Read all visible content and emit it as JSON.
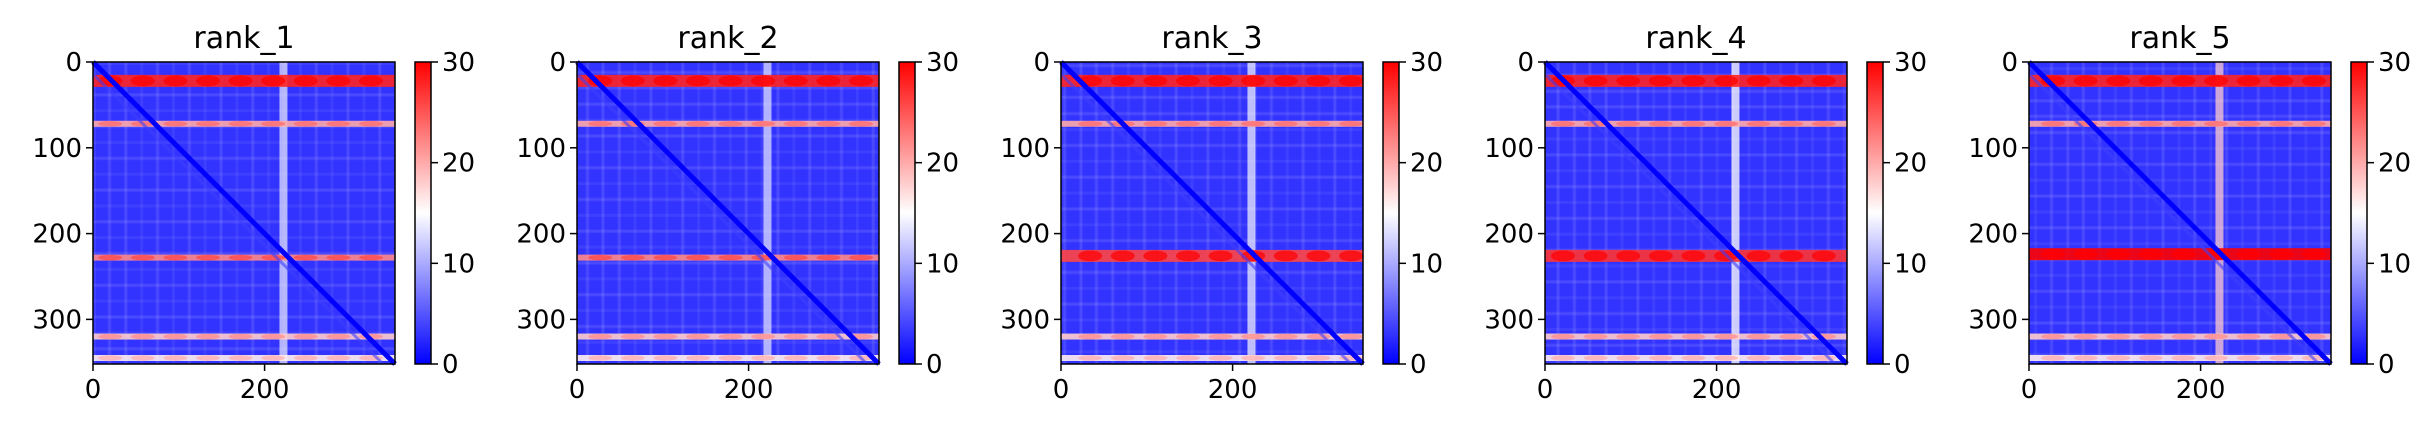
{
  "chart_data": [
    {
      "type": "heatmap",
      "title": "rank_1",
      "xlim": [
        0,
        352
      ],
      "ylim": [
        352,
        0
      ],
      "xticks": [
        0,
        200
      ],
      "yticks": [
        0,
        100,
        200,
        300
      ],
      "colorbar": {
        "min": 0,
        "max": 30,
        "ticks": [
          0,
          10,
          20,
          30
        ],
        "colormap": "bwr"
      },
      "features": {
        "bands": [
          {
            "pos": 22,
            "val": 28
          },
          {
            "pos": 72,
            "val": 20
          },
          {
            "pos": 228,
            "val": 22
          },
          {
            "pos": 320,
            "val": 18
          },
          {
            "pos": 345,
            "val": 16
          }
        ],
        "vline": {
          "pos": 222,
          "val": 13
        },
        "diagonal_val": 0
      }
    },
    {
      "type": "heatmap",
      "title": "rank_2",
      "xlim": [
        0,
        352
      ],
      "ylim": [
        352,
        0
      ],
      "xticks": [
        0,
        200
      ],
      "yticks": [
        0,
        100,
        200,
        300
      ],
      "colorbar": {
        "min": 0,
        "max": 30,
        "ticks": [
          0,
          10,
          20,
          30
        ],
        "colormap": "bwr"
      },
      "features": {
        "bands": [
          {
            "pos": 22,
            "val": 28
          },
          {
            "pos": 72,
            "val": 20
          },
          {
            "pos": 228,
            "val": 22
          },
          {
            "pos": 320,
            "val": 18
          },
          {
            "pos": 345,
            "val": 16
          }
        ],
        "vline": {
          "pos": 222,
          "val": 13
        },
        "diagonal_val": 0
      }
    },
    {
      "type": "heatmap",
      "title": "rank_3",
      "xlim": [
        0,
        352
      ],
      "ylim": [
        352,
        0
      ],
      "xticks": [
        0,
        200
      ],
      "yticks": [
        0,
        100,
        200,
        300
      ],
      "colorbar": {
        "min": 0,
        "max": 30,
        "ticks": [
          0,
          10,
          20,
          30
        ],
        "colormap": "bwr"
      },
      "features": {
        "bands": [
          {
            "pos": 22,
            "val": 28
          },
          {
            "pos": 72,
            "val": 20
          },
          {
            "pos": 226,
            "val": 26
          },
          {
            "pos": 320,
            "val": 18
          },
          {
            "pos": 345,
            "val": 16
          }
        ],
        "vline": {
          "pos": 222,
          "val": 14
        },
        "diagonal_val": 0
      }
    },
    {
      "type": "heatmap",
      "title": "rank_4",
      "xlim": [
        0,
        352
      ],
      "ylim": [
        352,
        0
      ],
      "xticks": [
        0,
        200
      ],
      "yticks": [
        0,
        100,
        200,
        300
      ],
      "colorbar": {
        "min": 0,
        "max": 30,
        "ticks": [
          0,
          10,
          20,
          30
        ],
        "colormap": "bwr"
      },
      "features": {
        "bands": [
          {
            "pos": 22,
            "val": 28
          },
          {
            "pos": 72,
            "val": 20
          },
          {
            "pos": 226,
            "val": 27
          },
          {
            "pos": 320,
            "val": 18
          },
          {
            "pos": 345,
            "val": 16
          }
        ],
        "vline": {
          "pos": 222,
          "val": 15
        },
        "diagonal_val": 0
      }
    },
    {
      "type": "heatmap",
      "title": "rank_5",
      "xlim": [
        0,
        352
      ],
      "ylim": [
        352,
        0
      ],
      "xticks": [
        0,
        200
      ],
      "yticks": [
        0,
        100,
        200,
        300
      ],
      "colorbar": {
        "min": 0,
        "max": 30,
        "ticks": [
          0,
          10,
          20,
          30
        ],
        "colormap": "bwr"
      },
      "features": {
        "bands": [
          {
            "pos": 22,
            "val": 28
          },
          {
            "pos": 72,
            "val": 20
          },
          {
            "pos": 224,
            "val": 30
          },
          {
            "pos": 320,
            "val": 18
          },
          {
            "pos": 345,
            "val": 16
          }
        ],
        "vline": {
          "pos": 222,
          "val": 18
        },
        "diagonal_val": 0
      }
    }
  ]
}
